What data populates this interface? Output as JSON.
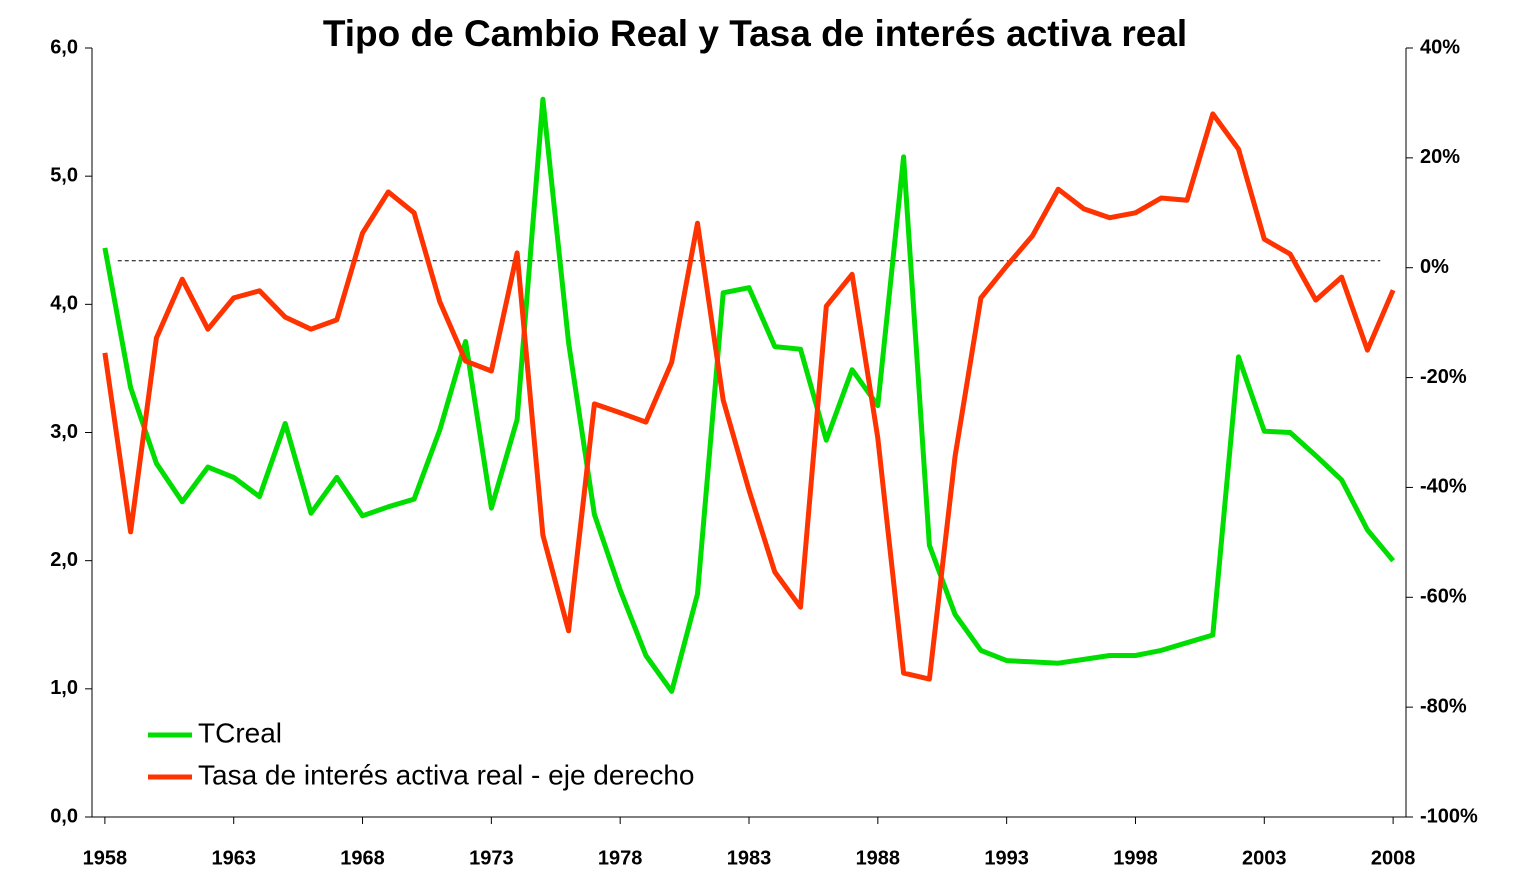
{
  "chart_data": {
    "type": "line",
    "title": "Tipo de Cambio Real y Tasa de interés activa real",
    "x": [
      1958,
      1959,
      1960,
      1961,
      1962,
      1963,
      1964,
      1965,
      1966,
      1967,
      1968,
      1969,
      1970,
      1971,
      1972,
      1973,
      1974,
      1975,
      1976,
      1977,
      1978,
      1979,
      1980,
      1981,
      1982,
      1983,
      1984,
      1985,
      1986,
      1987,
      1988,
      1989,
      1990,
      1991,
      1992,
      1993,
      1994,
      1995,
      1996,
      1997,
      1998,
      1999,
      2000,
      2001,
      2002,
      2003,
      2004,
      2005,
      2006,
      2007,
      2008
    ],
    "xlim": [
      1957.5,
      2008.5
    ],
    "xticks": [
      1958,
      1963,
      1968,
      1973,
      1978,
      1983,
      1988,
      1993,
      1998,
      2003,
      2008
    ],
    "ylim": [
      0,
      6
    ],
    "yticks": [
      {
        "value": 0,
        "label": "0,0"
      },
      {
        "value": 1,
        "label": "1,0"
      },
      {
        "value": 2,
        "label": "2,0"
      },
      {
        "value": 3,
        "label": "3,0"
      },
      {
        "value": 4,
        "label": "4,0"
      },
      {
        "value": 5,
        "label": "5,0"
      },
      {
        "value": 6,
        "label": "6,0"
      }
    ],
    "y2lim": [
      -100,
      40
    ],
    "y2ticks": [
      {
        "value": -100,
        "label": "-100%"
      },
      {
        "value": -80,
        "label": "-80%"
      },
      {
        "value": -60,
        "label": "-60%"
      },
      {
        "value": -40,
        "label": "-40%"
      },
      {
        "value": -20,
        "label": "-20%"
      },
      {
        "value": 0,
        "label": "0%"
      },
      {
        "value": 20,
        "label": "20%"
      },
      {
        "value": 40,
        "label": "40%"
      }
    ],
    "hline": 4.34,
    "legend": "lower-left",
    "series": [
      {
        "name": "TCreal",
        "color": "#00dd00",
        "values": [
          4.44,
          3.35,
          2.76,
          2.46,
          2.73,
          2.65,
          2.5,
          3.07,
          2.37,
          2.65,
          2.35,
          2.42,
          2.48,
          3.02,
          3.71,
          2.41,
          3.1,
          5.6,
          3.7,
          2.36,
          1.77,
          1.26,
          0.98,
          1.74,
          4.09,
          4.13,
          3.67,
          3.65,
          2.94,
          3.49,
          3.21,
          5.15,
          2.12,
          1.58,
          1.3,
          1.22,
          1.21,
          1.2,
          1.23,
          1.26,
          1.26,
          1.3,
          1.36,
          1.42,
          3.59,
          3.01,
          3.0,
          2.82,
          2.63,
          2.24,
          2.0
        ]
      },
      {
        "name": "Tasa de interés activa real - eje derecho",
        "color": "#ff3300",
        "axis": "y2",
        "values": [
          -15.5,
          -48.1,
          -12.8,
          -2.1,
          -11.2,
          -5.5,
          -4.2,
          -9.0,
          -11.2,
          -9.5,
          6.3,
          13.8,
          10.0,
          -6.2,
          -17.0,
          -18.8,
          2.7,
          -48.7,
          -66.1,
          -24.8,
          -26.4,
          -28.1,
          -17.2,
          8.1,
          -24.1,
          -40.5,
          -55.4,
          -61.8,
          -7.0,
          -1.2,
          -31.0,
          -73.8,
          -74.9,
          -34.3,
          -5.5,
          0.3,
          5.8,
          14.3,
          10.7,
          9.1,
          10.0,
          12.7,
          12.3,
          28.0,
          21.6,
          5.2,
          2.5,
          -5.9,
          -1.7,
          -15.0,
          -4.1
        ]
      }
    ]
  }
}
